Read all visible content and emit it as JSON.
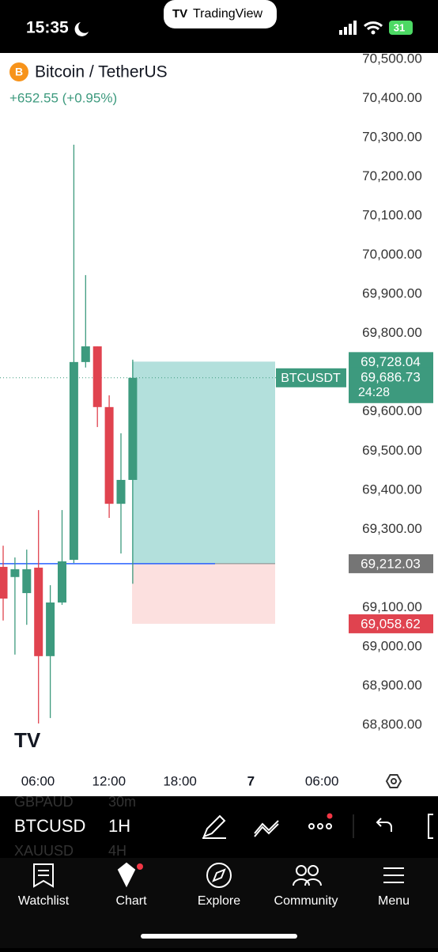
{
  "status_bar": {
    "time": "15:35",
    "battery": "31"
  },
  "app_pill": "TradingView",
  "symbol": {
    "name": "Bitcoin / TetherUS",
    "change": "+652.55 (+0.95%)"
  },
  "chart_data": {
    "type": "candlestick",
    "categories": [
      null,
      null,
      null,
      null,
      null,
      null,
      null,
      null,
      null,
      null,
      null,
      null
    ],
    "open": [
      69204,
      69178,
      69137,
      69202,
      68976,
      69113,
      69222,
      69727,
      69767,
      69612,
      69365,
      69426
    ],
    "high": [
      69258,
      69228,
      69248,
      69349,
      69157,
      69349,
      70282,
      69949,
      69767,
      69642,
      69545,
      69733
    ],
    "low": [
      69067,
      68980,
      69056,
      68804,
      68818,
      69107,
      69214,
      69713,
      69561,
      69329,
      69238,
      69161
    ],
    "close": [
      69123,
      69198,
      69198,
      68976,
      69113,
      69218,
      69727,
      69767,
      69612,
      69365,
      69426,
      69686.73
    ],
    "up_color": "#3d9a7e",
    "down_color": "#e0434f",
    "ylim": [
      68800,
      70500
    ],
    "yticks": [
      {
        "value": 70500,
        "label": "70,500.00"
      },
      {
        "value": 70400,
        "label": "70,400.00"
      },
      {
        "value": 70300,
        "label": "70,300.00"
      },
      {
        "value": 70200,
        "label": "70,200.00"
      },
      {
        "value": 70100,
        "label": "70,100.00"
      },
      {
        "value": 70000,
        "label": "70,000.00"
      },
      {
        "value": 69900,
        "label": "69,900.00"
      },
      {
        "value": 69800,
        "label": "69,800.00"
      },
      {
        "value": 69600,
        "label": "69,600.00"
      },
      {
        "value": 69500,
        "label": "69,500.00"
      },
      {
        "value": 69400,
        "label": "69,400.00"
      },
      {
        "value": 69300,
        "label": "69,300.00"
      },
      {
        "value": 69100,
        "label": "69,100.00"
      },
      {
        "value": 69000,
        "label": "69,000.00"
      },
      {
        "value": 68900,
        "label": "68,900.00"
      },
      {
        "value": 68800,
        "label": "68,800.00"
      }
    ],
    "x_axis_labels": [
      "06:00",
      "12:00",
      "18:00",
      "7",
      "06:00"
    ],
    "position": {
      "target": {
        "value": 69728.04,
        "label": "69,728.04"
      },
      "entry": {
        "value": 69212.03,
        "label": "69,212.03"
      },
      "stop": {
        "value": 69058.62,
        "label": "69,058.62"
      }
    },
    "last_price": {
      "value": 69686.73,
      "label": "69,686.73",
      "symbol": "BTCUSDT",
      "countdown": "24:28"
    }
  },
  "toolbar": {
    "symbol": "BTCUSD",
    "interval": "1H",
    "behind": [
      "GBPAUD",
      "30m",
      "XAUUSD",
      "4H"
    ]
  },
  "tabs": [
    "Watchlist",
    "Chart",
    "Explore",
    "Community",
    "Menu"
  ]
}
